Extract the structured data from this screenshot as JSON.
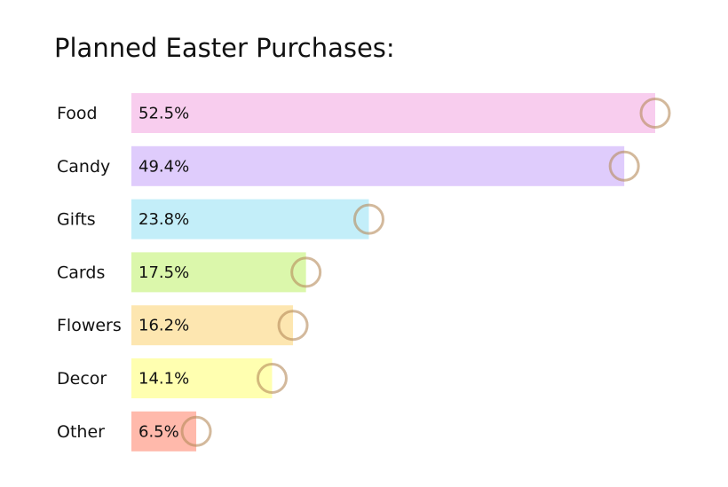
{
  "chart_data": {
    "type": "hbar",
    "title": "Planned Easter Purchases:",
    "categories": [
      "Food",
      "Candy",
      "Gifts",
      "Cards",
      "Flowers",
      "Decor",
      "Other"
    ],
    "values": [
      52.5,
      49.4,
      23.8,
      17.5,
      16.2,
      14.1,
      6.5
    ],
    "value_labels": [
      "52.5%",
      "49.4%",
      "23.8%",
      "17.5%",
      "16.2%",
      "14.1%",
      "6.5%"
    ],
    "colors": [
      "#f8cdee",
      "#dfccfc",
      "#c3eef9",
      "#dbf7ab",
      "#fde6b0",
      "#ffffb0",
      "#ffb9ab"
    ]
  }
}
